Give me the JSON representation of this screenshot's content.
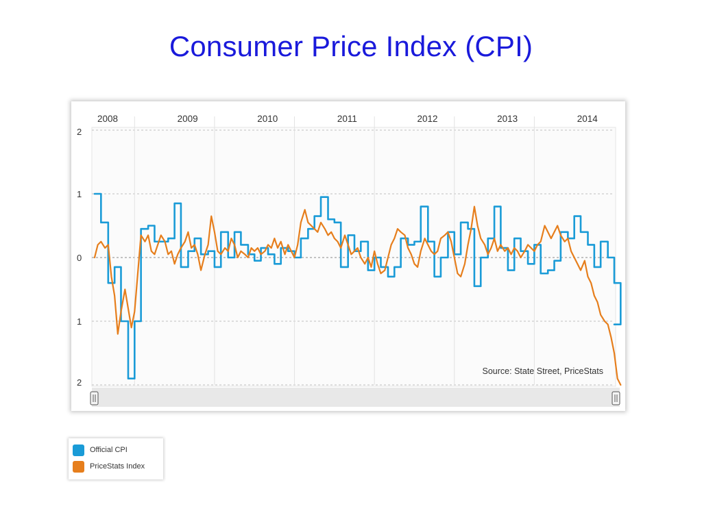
{
  "slide": {
    "title": "Consumer Price Index (CPI)"
  },
  "chart_data": {
    "type": "line",
    "title": "",
    "xlabel": "",
    "ylabel": "",
    "source_note": "Source: State Street, PriceStats",
    "x_tick_labels": [
      "2008",
      "2009",
      "2010",
      "2011",
      "2012",
      "2013",
      "2014"
    ],
    "y_tick_labels": [
      "2",
      "1",
      "0",
      "1",
      "2"
    ],
    "ylim": [
      -2,
      2
    ],
    "xlim": [
      2008.0,
      2014.5
    ],
    "grid": true,
    "legend_position": "below-left",
    "series": [
      {
        "name": "Official CPI",
        "color": "#1a9bd7",
        "style": "step",
        "points": [
          [
            2008.0,
            1.0
          ],
          [
            2008.08,
            0.55
          ],
          [
            2008.17,
            -0.4
          ],
          [
            2008.25,
            -0.15
          ],
          [
            2008.33,
            -1.0
          ],
          [
            2008.42,
            -1.9
          ],
          [
            2008.5,
            -1.0
          ],
          [
            2008.58,
            0.45
          ],
          [
            2008.67,
            0.5
          ],
          [
            2008.75,
            0.25
          ],
          [
            2008.92,
            0.3
          ],
          [
            2009.0,
            0.85
          ],
          [
            2009.08,
            -0.15
          ],
          [
            2009.17,
            0.1
          ],
          [
            2009.25,
            0.3
          ],
          [
            2009.33,
            0.05
          ],
          [
            2009.42,
            0.1
          ],
          [
            2009.5,
            -0.15
          ],
          [
            2009.58,
            0.4
          ],
          [
            2009.67,
            0.0
          ],
          [
            2009.75,
            0.4
          ],
          [
            2009.83,
            0.2
          ],
          [
            2009.92,
            0.05
          ],
          [
            2010.0,
            -0.05
          ],
          [
            2010.08,
            0.15
          ],
          [
            2010.17,
            0.05
          ],
          [
            2010.25,
            -0.1
          ],
          [
            2010.33,
            0.15
          ],
          [
            2010.42,
            0.1
          ],
          [
            2010.5,
            0.0
          ],
          [
            2010.58,
            0.3
          ],
          [
            2010.67,
            0.45
          ],
          [
            2010.75,
            0.65
          ],
          [
            2010.83,
            0.95
          ],
          [
            2010.92,
            0.6
          ],
          [
            2011.0,
            0.55
          ],
          [
            2011.08,
            -0.15
          ],
          [
            2011.17,
            0.35
          ],
          [
            2011.25,
            0.1
          ],
          [
            2011.33,
            0.25
          ],
          [
            2011.42,
            -0.2
          ],
          [
            2011.5,
            0.0
          ],
          [
            2011.58,
            -0.15
          ],
          [
            2011.67,
            -0.3
          ],
          [
            2011.75,
            -0.15
          ],
          [
            2011.83,
            0.3
          ],
          [
            2011.92,
            0.2
          ],
          [
            2012.0,
            0.25
          ],
          [
            2012.08,
            0.8
          ],
          [
            2012.17,
            0.25
          ],
          [
            2012.25,
            -0.3
          ],
          [
            2012.33,
            0.0
          ],
          [
            2012.42,
            0.4
          ],
          [
            2012.5,
            0.05
          ],
          [
            2012.58,
            0.55
          ],
          [
            2012.67,
            0.45
          ],
          [
            2012.75,
            -0.45
          ],
          [
            2012.83,
            0.0
          ],
          [
            2012.92,
            0.3
          ],
          [
            2013.0,
            0.8
          ],
          [
            2013.08,
            0.15
          ],
          [
            2013.17,
            -0.2
          ],
          [
            2013.25,
            0.3
          ],
          [
            2013.33,
            0.1
          ],
          [
            2013.42,
            -0.1
          ],
          [
            2013.5,
            0.2
          ],
          [
            2013.58,
            -0.25
          ],
          [
            2013.67,
            -0.2
          ],
          [
            2013.75,
            -0.05
          ],
          [
            2013.83,
            0.4
          ],
          [
            2013.92,
            0.3
          ],
          [
            2014.0,
            0.65
          ],
          [
            2014.08,
            0.4
          ],
          [
            2014.17,
            0.2
          ],
          [
            2014.25,
            -0.15
          ],
          [
            2014.33,
            0.25
          ],
          [
            2014.42,
            0.0
          ],
          [
            2014.5,
            -0.4
          ],
          [
            2014.58,
            -1.05
          ]
        ]
      },
      {
        "name": "PriceStats Index",
        "color": "#e67e1c",
        "style": "line",
        "points": [
          [
            2008.0,
            0.0
          ],
          [
            2008.04,
            0.2
          ],
          [
            2008.08,
            0.25
          ],
          [
            2008.13,
            0.15
          ],
          [
            2008.17,
            0.2
          ],
          [
            2008.21,
            -0.3
          ],
          [
            2008.25,
            -0.6
          ],
          [
            2008.29,
            -1.2
          ],
          [
            2008.33,
            -0.85
          ],
          [
            2008.38,
            -0.5
          ],
          [
            2008.42,
            -0.8
          ],
          [
            2008.46,
            -1.1
          ],
          [
            2008.5,
            -0.85
          ],
          [
            2008.54,
            -0.25
          ],
          [
            2008.58,
            0.35
          ],
          [
            2008.63,
            0.25
          ],
          [
            2008.67,
            0.35
          ],
          [
            2008.71,
            0.1
          ],
          [
            2008.75,
            0.05
          ],
          [
            2008.79,
            0.2
          ],
          [
            2008.83,
            0.35
          ],
          [
            2008.88,
            0.25
          ],
          [
            2008.92,
            0.05
          ],
          [
            2008.96,
            0.1
          ],
          [
            2009.0,
            -0.1
          ],
          [
            2009.04,
            0.05
          ],
          [
            2009.08,
            0.15
          ],
          [
            2009.13,
            0.25
          ],
          [
            2009.17,
            0.4
          ],
          [
            2009.21,
            0.15
          ],
          [
            2009.25,
            0.2
          ],
          [
            2009.29,
            0.05
          ],
          [
            2009.33,
            -0.2
          ],
          [
            2009.38,
            0.05
          ],
          [
            2009.42,
            0.2
          ],
          [
            2009.46,
            0.65
          ],
          [
            2009.5,
            0.4
          ],
          [
            2009.54,
            0.1
          ],
          [
            2009.58,
            0.05
          ],
          [
            2009.63,
            0.15
          ],
          [
            2009.67,
            0.1
          ],
          [
            2009.71,
            0.3
          ],
          [
            2009.75,
            0.2
          ],
          [
            2009.79,
            0.0
          ],
          [
            2009.83,
            0.1
          ],
          [
            2009.88,
            0.05
          ],
          [
            2009.92,
            0.0
          ],
          [
            2009.96,
            0.15
          ],
          [
            2010.0,
            0.1
          ],
          [
            2010.04,
            0.15
          ],
          [
            2010.08,
            0.05
          ],
          [
            2010.13,
            0.1
          ],
          [
            2010.17,
            0.2
          ],
          [
            2010.21,
            0.15
          ],
          [
            2010.25,
            0.3
          ],
          [
            2010.29,
            0.15
          ],
          [
            2010.33,
            0.25
          ],
          [
            2010.38,
            0.05
          ],
          [
            2010.42,
            0.2
          ],
          [
            2010.46,
            0.1
          ],
          [
            2010.5,
            0.0
          ],
          [
            2010.54,
            0.2
          ],
          [
            2010.58,
            0.55
          ],
          [
            2010.63,
            0.75
          ],
          [
            2010.67,
            0.55
          ],
          [
            2010.71,
            0.5
          ],
          [
            2010.75,
            0.45
          ],
          [
            2010.79,
            0.4
          ],
          [
            2010.83,
            0.55
          ],
          [
            2010.88,
            0.45
          ],
          [
            2010.92,
            0.35
          ],
          [
            2010.96,
            0.4
          ],
          [
            2011.0,
            0.3
          ],
          [
            2011.04,
            0.25
          ],
          [
            2011.08,
            0.15
          ],
          [
            2011.13,
            0.35
          ],
          [
            2011.17,
            0.2
          ],
          [
            2011.21,
            0.05
          ],
          [
            2011.25,
            0.1
          ],
          [
            2011.29,
            0.15
          ],
          [
            2011.33,
            0.0
          ],
          [
            2011.38,
            -0.1
          ],
          [
            2011.42,
            0.0
          ],
          [
            2011.46,
            -0.15
          ],
          [
            2011.5,
            0.1
          ],
          [
            2011.54,
            -0.1
          ],
          [
            2011.58,
            -0.25
          ],
          [
            2011.63,
            -0.2
          ],
          [
            2011.67,
            0.0
          ],
          [
            2011.71,
            0.2
          ],
          [
            2011.75,
            0.3
          ],
          [
            2011.79,
            0.45
          ],
          [
            2011.83,
            0.4
          ],
          [
            2011.88,
            0.35
          ],
          [
            2011.92,
            0.15
          ],
          [
            2011.96,
            0.05
          ],
          [
            2012.0,
            -0.1
          ],
          [
            2012.04,
            -0.15
          ],
          [
            2012.08,
            0.1
          ],
          [
            2012.13,
            0.3
          ],
          [
            2012.17,
            0.2
          ],
          [
            2012.21,
            0.1
          ],
          [
            2012.25,
            0.05
          ],
          [
            2012.29,
            0.1
          ],
          [
            2012.33,
            0.3
          ],
          [
            2012.38,
            0.35
          ],
          [
            2012.42,
            0.4
          ],
          [
            2012.46,
            0.25
          ],
          [
            2012.5,
            0.0
          ],
          [
            2012.54,
            -0.25
          ],
          [
            2012.58,
            -0.3
          ],
          [
            2012.63,
            -0.1
          ],
          [
            2012.67,
            0.2
          ],
          [
            2012.71,
            0.45
          ],
          [
            2012.75,
            0.8
          ],
          [
            2012.79,
            0.5
          ],
          [
            2012.83,
            0.3
          ],
          [
            2012.88,
            0.2
          ],
          [
            2012.92,
            0.05
          ],
          [
            2012.96,
            0.15
          ],
          [
            2013.0,
            0.3
          ],
          [
            2013.04,
            0.1
          ],
          [
            2013.08,
            0.2
          ],
          [
            2013.13,
            0.1
          ],
          [
            2013.17,
            0.15
          ],
          [
            2013.21,
            0.05
          ],
          [
            2013.25,
            0.15
          ],
          [
            2013.29,
            0.1
          ],
          [
            2013.33,
            0.0
          ],
          [
            2013.38,
            0.1
          ],
          [
            2013.42,
            0.2
          ],
          [
            2013.46,
            0.15
          ],
          [
            2013.5,
            0.1
          ],
          [
            2013.54,
            0.2
          ],
          [
            2013.58,
            0.25
          ],
          [
            2013.63,
            0.5
          ],
          [
            2013.67,
            0.4
          ],
          [
            2013.71,
            0.3
          ],
          [
            2013.75,
            0.4
          ],
          [
            2013.79,
            0.5
          ],
          [
            2013.83,
            0.35
          ],
          [
            2013.88,
            0.25
          ],
          [
            2013.92,
            0.3
          ],
          [
            2013.96,
            0.1
          ],
          [
            2014.0,
            0.0
          ],
          [
            2014.04,
            -0.1
          ],
          [
            2014.08,
            -0.2
          ],
          [
            2014.13,
            -0.05
          ],
          [
            2014.17,
            -0.3
          ],
          [
            2014.21,
            -0.4
          ],
          [
            2014.25,
            -0.6
          ],
          [
            2014.29,
            -0.7
          ],
          [
            2014.33,
            -0.9
          ],
          [
            2014.38,
            -1.0
          ],
          [
            2014.42,
            -1.05
          ],
          [
            2014.46,
            -1.25
          ],
          [
            2014.5,
            -1.5
          ],
          [
            2014.54,
            -1.9
          ],
          [
            2014.58,
            -2.0
          ]
        ]
      }
    ]
  },
  "legend": {
    "items": [
      {
        "label": "Official CPI",
        "color": "#1a9bd7"
      },
      {
        "label": "PriceStats Index",
        "color": "#e67e1c"
      }
    ]
  },
  "scrollbar": {
    "left_handle_icon": "grip-icon",
    "right_handle_icon": "grip-icon"
  }
}
